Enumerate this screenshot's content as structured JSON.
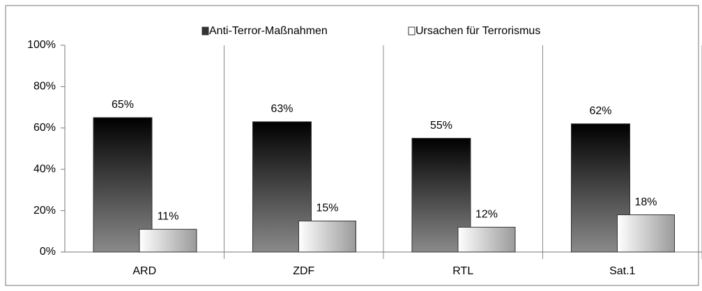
{
  "chart_data": {
    "type": "bar",
    "categories": [
      "ARD",
      "ZDF",
      "RTL",
      "Sat.1"
    ],
    "series": [
      {
        "name": "Anti-Terror-Maßnahmen",
        "color": "#000000",
        "values": [
          65,
          63,
          55,
          62
        ],
        "value_labels": [
          "65%",
          "63%",
          "55%",
          "62%"
        ]
      },
      {
        "name": "Ursachen für Terrorismus",
        "color": "#ffffff",
        "values": [
          11,
          15,
          12,
          18
        ],
        "value_labels": [
          "11%",
          "15%",
          "12%",
          "18%"
        ]
      }
    ],
    "ylim": [
      0,
      100
    ],
    "yticks": [
      {
        "value": 0,
        "label": "0%"
      },
      {
        "value": 20,
        "label": "20%"
      },
      {
        "value": 40,
        "label": "40%"
      },
      {
        "value": 60,
        "label": "60%"
      },
      {
        "value": 80,
        "label": "80%"
      },
      {
        "value": 100,
        "label": "100%"
      }
    ],
    "legend": "top"
  }
}
